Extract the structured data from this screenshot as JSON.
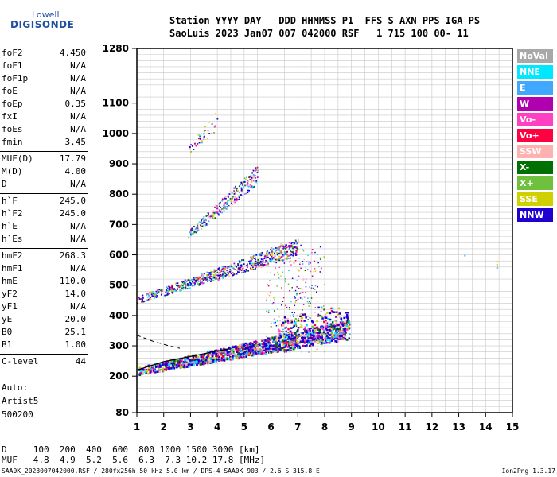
{
  "logo": {
    "line1": "Lowell",
    "line2": "DIGISONDE"
  },
  "header": {
    "row1": "Station YYYY DAY   DDD HHMMSS P1  FFS S AXN PPS IGA PS",
    "row2": "SaoLuis 2023 Jan07 007 042000 RSF   1 715 100 00- 11"
  },
  "params": [
    {
      "k": "foF2",
      "v": "4.450"
    },
    {
      "k": "foF1",
      "v": "N/A"
    },
    {
      "k": "foF1p",
      "v": "N/A"
    },
    {
      "k": "foE",
      "v": "N/A"
    },
    {
      "k": "foEp",
      "v": "0.35"
    },
    {
      "k": "fxI",
      "v": "N/A"
    },
    {
      "k": "foEs",
      "v": "N/A"
    },
    {
      "k": "fmin",
      "v": "3.45"
    },
    {
      "k": "MUF(D)",
      "v": "17.79"
    },
    {
      "k": "M(D)",
      "v": "4.00"
    },
    {
      "k": "D",
      "v": "N/A"
    },
    {
      "k": "h`F",
      "v": "245.0"
    },
    {
      "k": "h`F2",
      "v": "245.0"
    },
    {
      "k": "h`E",
      "v": "N/A"
    },
    {
      "k": "h`Es",
      "v": "N/A"
    },
    {
      "k": "hmF2",
      "v": "268.3"
    },
    {
      "k": "hmF1",
      "v": "N/A"
    },
    {
      "k": "hmE",
      "v": "110.0"
    },
    {
      "k": "yF2",
      "v": "14.0"
    },
    {
      "k": "yF1",
      "v": "N/A"
    },
    {
      "k": "yE",
      "v": "20.0"
    },
    {
      "k": "B0",
      "v": "25.1"
    },
    {
      "k": "B1",
      "v": "1.00"
    },
    {
      "k": "C-level",
      "v": "44"
    }
  ],
  "auto": [
    "Auto:",
    "Artist5",
    "500200"
  ],
  "legend": [
    {
      "label": "NoVal",
      "color": "#a8a8a8"
    },
    {
      "label": "NNE",
      "color": "#00e8ff"
    },
    {
      "label": "E",
      "color": "#40a8ff"
    },
    {
      "label": "W",
      "color": "#b000b0"
    },
    {
      "label": "Vo-",
      "color": "#ff40c0"
    },
    {
      "label": "Vo+",
      "color": "#ff0040"
    },
    {
      "label": "SSW",
      "color": "#ffb0b0"
    },
    {
      "label": "X-",
      "color": "#007000"
    },
    {
      "label": "X+",
      "color": "#70c040"
    },
    {
      "label": "SSE",
      "color": "#d0d000"
    },
    {
      "label": "NNW",
      "color": "#2000d0"
    }
  ],
  "muf_table": {
    "row1": "D     100  200  400  600  800 1000 1500 3000 [km]",
    "row2": "MUF   4.8  4.9  5.2  5.6  6.3  7.3 10.2 17.8 [MHz]"
  },
  "footer": {
    "left": "SAA0K_2023007042000.RSF / 280fx256h 50 kHz 5.0 km / DPS-4 SAA0K 903 / 2.6 S 315.8 E",
    "right": "Ion2Png 1.3.17"
  },
  "chart_data": {
    "type": "scatter",
    "xlim": [
      1,
      15
    ],
    "ylim": [
      80,
      1280
    ],
    "x_ticks": [
      1,
      2,
      3,
      4,
      5,
      6,
      7,
      8,
      9,
      10,
      11,
      12,
      13,
      14,
      15
    ],
    "y_ticks": [
      80,
      200,
      300,
      400,
      500,
      600,
      700,
      800,
      900,
      1000,
      1100,
      1280
    ],
    "grid": true,
    "traces": [
      {
        "name": "F2 1st hop",
        "x_range": [
          1.0,
          8.9
        ],
        "y_start": 215,
        "y_end": 350
      },
      {
        "name": "F2 2nd hop",
        "x_range": [
          1.0,
          7.0
        ],
        "y_start": 450,
        "y_end": 620
      },
      {
        "name": "F2 3rd hop",
        "x_range": [
          2.9,
          5.5
        ],
        "y_start": 665,
        "y_end": 860
      },
      {
        "name": "F2 4th hop",
        "x_range": [
          2.9,
          4.0
        ],
        "y_start": 940,
        "y_end": 1040
      }
    ],
    "profile_curve": [
      [
        1.0,
        220
      ],
      [
        2.0,
        248
      ],
      [
        3.0,
        265
      ],
      [
        4.0,
        283
      ],
      [
        4.45,
        290
      ]
    ]
  }
}
